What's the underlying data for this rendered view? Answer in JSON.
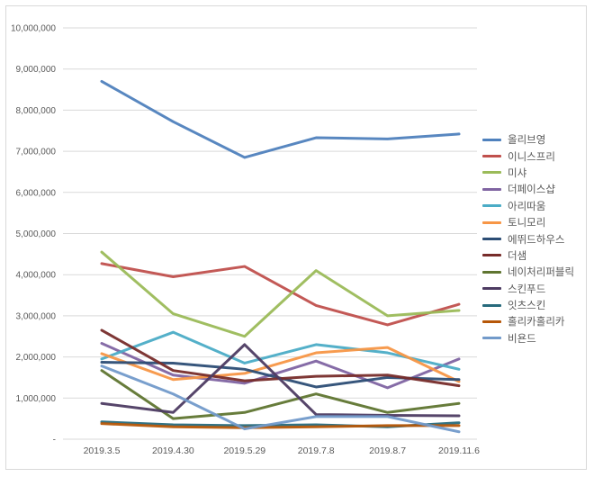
{
  "chart_data": {
    "type": "line",
    "title": "",
    "xlabel": "",
    "ylabel": "",
    "grid": true,
    "legend_position": "right",
    "ylim": [
      0,
      10000000
    ],
    "y_ticks": [
      {
        "v": 0,
        "label": "-"
      },
      {
        "v": 1000000,
        "label": "1,000,000"
      },
      {
        "v": 2000000,
        "label": "2,000,000"
      },
      {
        "v": 3000000,
        "label": "3,000,000"
      },
      {
        "v": 4000000,
        "label": "4,000,000"
      },
      {
        "v": 5000000,
        "label": "5,000,000"
      },
      {
        "v": 6000000,
        "label": "6,000,000"
      },
      {
        "v": 7000000,
        "label": "7,000,000"
      },
      {
        "v": 8000000,
        "label": "8,000,000"
      },
      {
        "v": 9000000,
        "label": "9,000,000"
      },
      {
        "v": 10000000,
        "label": "10,000,000"
      }
    ],
    "categories": [
      "2019.3.5",
      "2019.4.30",
      "2019.5.29",
      "2019.7.8",
      "2019.8.7",
      "2019.11.6"
    ],
    "series": [
      {
        "name": "올리브영",
        "color": "#4F81BD",
        "values": [
          8700000,
          7720000,
          6850000,
          7330000,
          7300000,
          7420000
        ]
      },
      {
        "name": "이니스프리",
        "color": "#C0504D",
        "values": [
          4270000,
          3950000,
          4200000,
          3250000,
          2780000,
          3280000
        ]
      },
      {
        "name": "미샤",
        "color": "#9BBB59",
        "values": [
          4550000,
          3050000,
          2500000,
          4100000,
          3000000,
          3130000
        ]
      },
      {
        "name": "더페이스샵",
        "color": "#8064A2",
        "values": [
          2330000,
          1560000,
          1360000,
          1900000,
          1250000,
          1950000
        ]
      },
      {
        "name": "아리따움",
        "color": "#4BACC6",
        "values": [
          1950000,
          2600000,
          1850000,
          2300000,
          2100000,
          1700000
        ]
      },
      {
        "name": "토니모리",
        "color": "#F79646",
        "values": [
          2080000,
          1450000,
          1600000,
          2100000,
          2230000,
          1400000
        ]
      },
      {
        "name": "에뛰드하우스",
        "color": "#2C4D75",
        "values": [
          1870000,
          1850000,
          1700000,
          1270000,
          1500000,
          1450000
        ]
      },
      {
        "name": "더샘",
        "color": "#772C2A",
        "values": [
          2650000,
          1670000,
          1420000,
          1530000,
          1560000,
          1300000
        ]
      },
      {
        "name": "네이처리퍼블릭",
        "color": "#5F7530",
        "values": [
          1670000,
          500000,
          650000,
          1100000,
          650000,
          870000
        ]
      },
      {
        "name": "스킨푸드",
        "color": "#4D3B62",
        "values": [
          870000,
          650000,
          2300000,
          600000,
          580000,
          570000
        ]
      },
      {
        "name": "잇츠스킨",
        "color": "#276A7C",
        "values": [
          420000,
          350000,
          330000,
          350000,
          300000,
          400000
        ]
      },
      {
        "name": "홀리카홀리카",
        "color": "#B65708",
        "values": [
          380000,
          300000,
          280000,
          300000,
          330000,
          330000
        ]
      },
      {
        "name": "비욘드",
        "color": "#729ACA",
        "values": [
          1780000,
          1100000,
          250000,
          550000,
          550000,
          180000
        ]
      }
    ]
  }
}
